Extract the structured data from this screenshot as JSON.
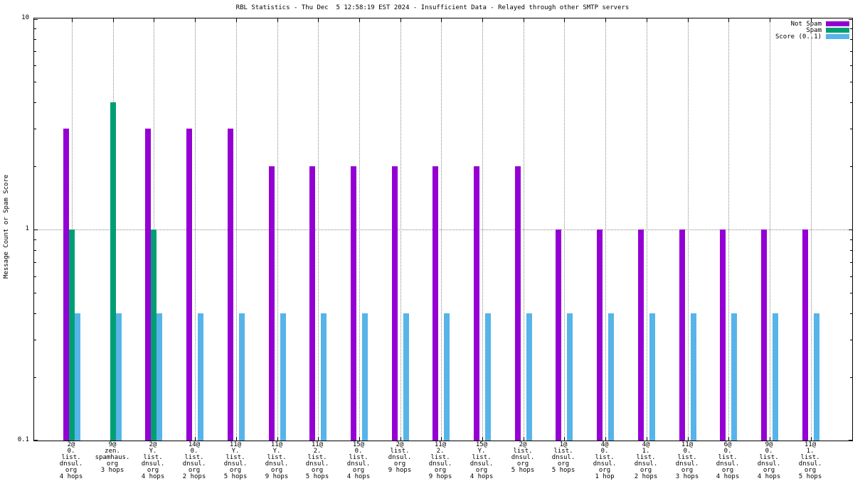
{
  "title": "RBL Statistics - Thu Dec  5 12:58:19 EST 2024 - Insufficient Data - Relayed through other SMTP servers",
  "ylabel": "Message Count or Spam Score",
  "chart_data": {
    "type": "bar",
    "yscale": "log",
    "ylim": [
      0.1,
      10
    ],
    "yticks": [
      {
        "value": 10,
        "label": "10"
      },
      {
        "value": 1,
        "label": "1"
      },
      {
        "value": 0.1,
        "label": "0.1"
      }
    ],
    "grid": {
      "vertical_dotted_per_category": true,
      "horizontal_dotted_at": 1
    },
    "legend_position": "top-right",
    "categories": [
      [
        "2@",
        "0.",
        "list.",
        "dnsul.",
        "org",
        "4 hops"
      ],
      [
        "9@",
        "zen.",
        "spamhaus.",
        "org",
        "3 hops"
      ],
      [
        "2@",
        "Y.",
        "list.",
        "dnsul.",
        "org",
        "4 hops"
      ],
      [
        "14@",
        "0.",
        "list.",
        "dnsul.",
        "org",
        "2 hops"
      ],
      [
        "11@",
        "Y.",
        "list.",
        "dnsul.",
        "org",
        "5 hops"
      ],
      [
        "11@",
        "Y.",
        "list.",
        "dnsul.",
        "org",
        "9 hops"
      ],
      [
        "11@",
        "2.",
        "list.",
        "dnsul.",
        "org",
        "5 hops"
      ],
      [
        "15@",
        "0.",
        "list.",
        "dnsul.",
        "org",
        "4 hops"
      ],
      [
        "2@",
        "list.",
        "dnsul.",
        "org",
        "9 hops"
      ],
      [
        "11@",
        "2.",
        "list.",
        "dnsul.",
        "org",
        "9 hops"
      ],
      [
        "15@",
        "Y.",
        "list.",
        "dnsul.",
        "org",
        "4 hops"
      ],
      [
        "2@",
        "list.",
        "dnsul.",
        "org",
        "5 hops"
      ],
      [
        "1@",
        "list.",
        "dnsul.",
        "org",
        "5 hops"
      ],
      [
        "4@",
        "0.",
        "list.",
        "dnsul.",
        "org",
        "1 hop"
      ],
      [
        "4@",
        "1.",
        "list.",
        "dnsul.",
        "org",
        "2 hops"
      ],
      [
        "11@",
        "0.",
        "list.",
        "dnsul.",
        "org",
        "3 hops"
      ],
      [
        "6@",
        "0.",
        "list.",
        "dnsul.",
        "org",
        "4 hops"
      ],
      [
        "9@",
        "0.",
        "list.",
        "dnsul.",
        "org",
        "4 hops"
      ],
      [
        "11@",
        "1.",
        "list.",
        "dnsul.",
        "org",
        "5 hops"
      ]
    ],
    "series": [
      {
        "name": "Not Spam",
        "color": "#9400d3",
        "values": [
          3,
          null,
          3,
          3,
          3,
          2,
          2,
          2,
          2,
          2,
          2,
          2,
          1,
          1,
          1,
          1,
          1,
          1,
          1
        ]
      },
      {
        "name": "Spam",
        "color": "#009e73",
        "values": [
          1,
          4,
          1,
          null,
          null,
          null,
          null,
          null,
          null,
          null,
          null,
          null,
          null,
          null,
          null,
          null,
          null,
          null,
          null
        ]
      },
      {
        "name": "Score (0..1)",
        "color": "#56b4e9",
        "values": [
          0.4,
          0.4,
          0.4,
          0.4,
          0.4,
          0.4,
          0.4,
          0.4,
          0.4,
          0.4,
          0.4,
          0.4,
          0.4,
          0.4,
          0.4,
          0.4,
          0.4,
          0.4,
          0.4
        ]
      }
    ]
  }
}
